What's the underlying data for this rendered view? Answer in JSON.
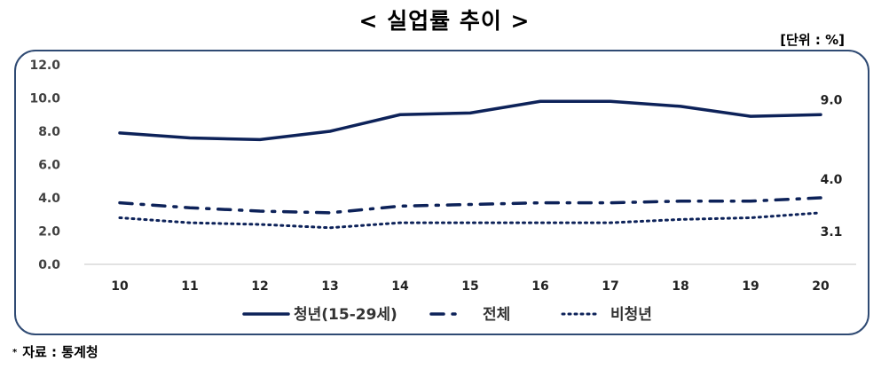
{
  "title": "< 실업률 추이 >",
  "unit_label": "[단위 : %]",
  "source": {
    "bullet": "*",
    "text": "자료 : 통계청"
  },
  "colors": {
    "line": "#0d2259",
    "axis_text": "#404040",
    "frame": "#2f4a73",
    "gridline": "#d9d9d9"
  },
  "chart_data": {
    "type": "line",
    "title": "< 실업률 추이 >",
    "xlabel": "",
    "ylabel": "",
    "unit": "%",
    "categories": [
      "10",
      "11",
      "12",
      "13",
      "14",
      "15",
      "16",
      "17",
      "18",
      "19",
      "20"
    ],
    "yticks": [
      "0.0",
      "2.0",
      "4.0",
      "6.0",
      "8.0",
      "10.0",
      "12.0"
    ],
    "ylim": [
      0,
      12
    ],
    "grid": false,
    "legend_position": "bottom",
    "series": [
      {
        "name": "청년(15-29세)",
        "style": "solid",
        "values": [
          7.9,
          7.6,
          7.5,
          8.0,
          9.0,
          9.1,
          9.8,
          9.8,
          9.5,
          8.9,
          9.0
        ]
      },
      {
        "name": "전체",
        "style": "dash-dot",
        "values": [
          3.7,
          3.4,
          3.2,
          3.1,
          3.5,
          3.6,
          3.7,
          3.7,
          3.8,
          3.8,
          4.0
        ]
      },
      {
        "name": "비청년",
        "style": "dotted",
        "values": [
          2.8,
          2.5,
          2.4,
          2.2,
          2.5,
          2.5,
          2.5,
          2.5,
          2.7,
          2.8,
          3.1
        ]
      }
    ],
    "annotations": [
      {
        "series": "청년(15-29세)",
        "x": "20",
        "text": "9.0"
      },
      {
        "series": "전체",
        "x": "20",
        "text": "4.0"
      },
      {
        "series": "비청년",
        "x": "20",
        "text": "3.1"
      }
    ]
  }
}
